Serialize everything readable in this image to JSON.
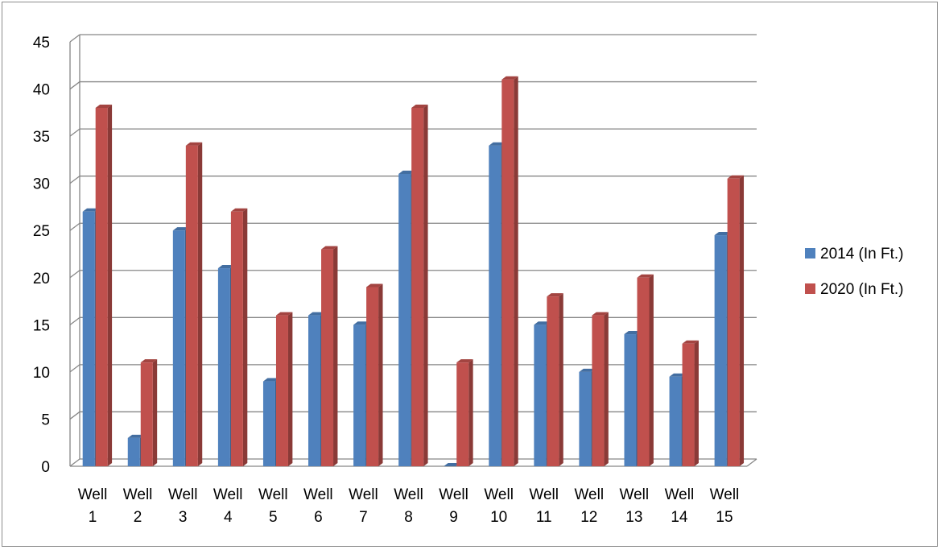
{
  "chart_data": {
    "type": "bar",
    "style": "3d-clustered-column",
    "categories": [
      [
        "Well",
        "1"
      ],
      [
        "Well",
        "2"
      ],
      [
        "Well",
        "3"
      ],
      [
        "Well",
        "4"
      ],
      [
        "Well",
        "5"
      ],
      [
        "Well",
        "6"
      ],
      [
        "Well",
        "7"
      ],
      [
        "Well",
        "8"
      ],
      [
        "Well",
        "9"
      ],
      [
        "Well",
        "10"
      ],
      [
        "Well",
        "11"
      ],
      [
        "Well",
        "12"
      ],
      [
        "Well",
        "13"
      ],
      [
        "Well",
        "14"
      ],
      [
        "Well",
        "15"
      ]
    ],
    "series": [
      {
        "name": "2014 (In Ft.)",
        "color": "#4f81bd",
        "values": [
          27,
          3,
          25,
          21,
          9,
          16,
          15,
          31,
          0,
          34,
          15,
          10,
          14,
          9.5,
          24.5
        ]
      },
      {
        "name": "2020 (In Ft.)",
        "color": "#c0504d",
        "values": [
          38,
          11,
          34,
          27,
          16,
          23,
          19,
          38,
          11,
          41,
          18,
          16,
          20,
          13,
          30.5
        ]
      }
    ],
    "title": "",
    "xlabel": "",
    "ylabel": "",
    "ylim": [
      0,
      45
    ],
    "yticks": [
      "0",
      "5",
      "10",
      "15",
      "20",
      "25",
      "30",
      "35",
      "40",
      "45"
    ],
    "grid": true,
    "legend": "right"
  }
}
